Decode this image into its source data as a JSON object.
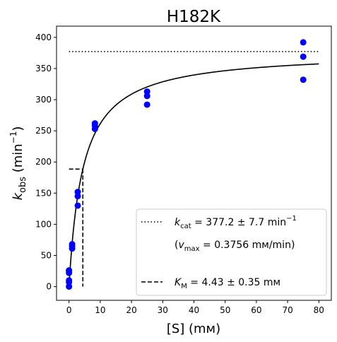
{
  "chart_data": {
    "type": "scatter",
    "title": "H182K",
    "xlabel": "[S] (mм)",
    "ylabel": {
      "main": "k",
      "sub": "obs",
      "unit_open": " (min",
      "unit_sup": "−1",
      "unit_close": ")"
    },
    "xlim": [
      -4,
      84
    ],
    "ylim": [
      -22,
      418
    ],
    "xticks": [
      0,
      10,
      20,
      30,
      40,
      50,
      60,
      70,
      80
    ],
    "yticks": [
      0,
      50,
      100,
      150,
      200,
      250,
      300,
      350,
      400
    ],
    "grid": false,
    "legend_position": "lower-right",
    "colors": {
      "points": "#0000ff",
      "lines": "#000000"
    },
    "series": [
      {
        "kind": "points",
        "x": [
          0,
          0,
          0,
          0,
          0,
          0,
          1,
          1,
          1,
          2.8,
          2.8,
          2.8,
          8.3,
          8.3,
          8.3,
          25,
          25,
          25,
          75,
          75,
          75
        ],
        "y": [
          0,
          7,
          10,
          22,
          25,
          26,
          61,
          65,
          68,
          130,
          145,
          152,
          253,
          258,
          262,
          292,
          306,
          313,
          332,
          369,
          392
        ]
      },
      {
        "kind": "fit",
        "model": "michaelis-menten",
        "kcat": 377.2,
        "km": 4.43,
        "x_range": [
          0,
          80
        ]
      },
      {
        "kind": "kcat-line",
        "y": 377.2,
        "x_range": [
          0,
          80
        ],
        "style": "dotted"
      },
      {
        "kind": "km-marker",
        "x": 4.43,
        "y_half": 188.6,
        "x_start": 0,
        "style": "dashed"
      }
    ],
    "legend": {
      "kcat": {
        "name": "k",
        "sub": "cat",
        "value": " = 377.2 ± 7.7 min",
        "sup": "−1"
      },
      "vmax": {
        "open": "(",
        "name": "v",
        "sub": "max",
        "value": " = 0.3756 mм/min)"
      },
      "km": {
        "name": "K",
        "sub": "M",
        "value": " = 4.43 ± 0.35 mм"
      }
    }
  }
}
